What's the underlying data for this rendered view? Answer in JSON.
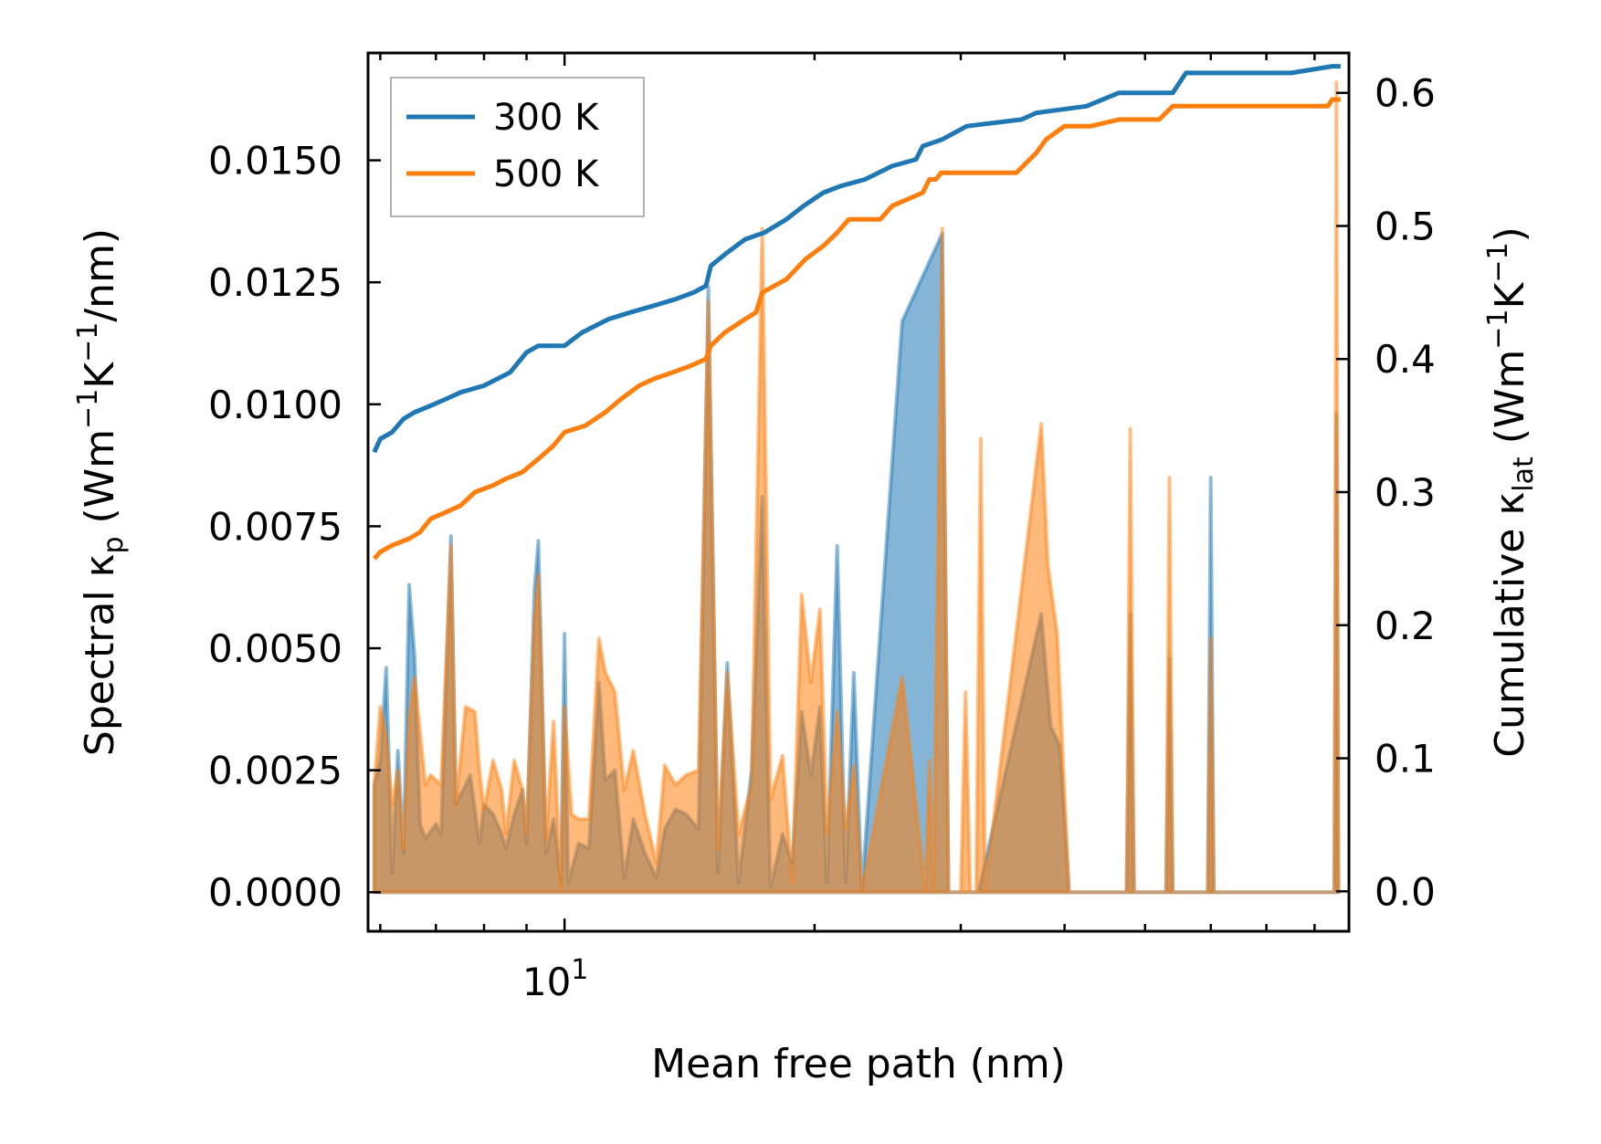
{
  "chart_data": {
    "type": "line",
    "title": "",
    "xlabel": "Mean free path (nm)",
    "xscale": "log",
    "xlim": [
      5.8,
      88
    ],
    "x_tick_label": {
      "base": "10",
      "exp": "1",
      "value": 10
    },
    "y_left": {
      "label_parts": [
        "Spectral κ",
        "p",
        " (Wm",
        "−1",
        "K",
        "−1",
        "/nm)"
      ],
      "ylim": [
        -0.0008,
        0.0172
      ],
      "ticks": [
        0.0,
        0.0025,
        0.005,
        0.0075,
        0.01,
        0.0125,
        0.015
      ],
      "tick_labels": [
        "0.0000",
        "0.0025",
        "0.0050",
        "0.0075",
        "0.0100",
        "0.0125",
        "0.0150"
      ]
    },
    "y_right": {
      "label_parts": [
        "Cumulative κ",
        "lat",
        " (Wm",
        "−1",
        "K",
        "−1",
        ")"
      ],
      "ylim": [
        -0.03,
        0.63
      ],
      "ticks": [
        0.0,
        0.1,
        0.2,
        0.3,
        0.4,
        0.5,
        0.6
      ],
      "tick_labels": [
        "0.0",
        "0.1",
        "0.2",
        "0.3",
        "0.4",
        "0.5",
        "0.6"
      ]
    },
    "legend": {
      "position": "top-left",
      "entries": [
        "300 K",
        "500 K"
      ]
    },
    "series": [
      {
        "name": "300 K",
        "color": "#1f77b4",
        "cumulative": [
          [
            5.9,
            0.33
          ],
          [
            6.0,
            0.34
          ],
          [
            6.2,
            0.345
          ],
          [
            6.4,
            0.355
          ],
          [
            6.6,
            0.36
          ],
          [
            6.9,
            0.365
          ],
          [
            7.2,
            0.37
          ],
          [
            7.5,
            0.375
          ],
          [
            8.0,
            0.38
          ],
          [
            8.6,
            0.39
          ],
          [
            9.0,
            0.405
          ],
          [
            9.3,
            0.41
          ],
          [
            10.0,
            0.41
          ],
          [
            10.5,
            0.42
          ],
          [
            11.3,
            0.43
          ],
          [
            12.0,
            0.435
          ],
          [
            12.8,
            0.44
          ],
          [
            13.6,
            0.445
          ],
          [
            14.3,
            0.45
          ],
          [
            14.8,
            0.455
          ],
          [
            15.0,
            0.47
          ],
          [
            15.7,
            0.48
          ],
          [
            16.5,
            0.49
          ],
          [
            17.4,
            0.495
          ],
          [
            18.5,
            0.505
          ],
          [
            19.4,
            0.515
          ],
          [
            20.5,
            0.525
          ],
          [
            21.5,
            0.53
          ],
          [
            23.0,
            0.535
          ],
          [
            24.8,
            0.545
          ],
          [
            26.5,
            0.55
          ],
          [
            27.0,
            0.56
          ],
          [
            28.5,
            0.565
          ],
          [
            30.5,
            0.575
          ],
          [
            35.5,
            0.58
          ],
          [
            37.0,
            0.585
          ],
          [
            42.5,
            0.59
          ],
          [
            46.5,
            0.6
          ],
          [
            54.0,
            0.6
          ],
          [
            56.0,
            0.615
          ],
          [
            75.0,
            0.615
          ],
          [
            84.0,
            0.62
          ],
          [
            86.0,
            0.62
          ]
        ],
        "spectral": [
          [
            5.9,
            0.0022
          ],
          [
            6.0,
            0.0027
          ],
          [
            6.1,
            0.0046
          ],
          [
            6.2,
            0.0004
          ],
          [
            6.3,
            0.0029
          ],
          [
            6.4,
            0.0008
          ],
          [
            6.5,
            0.0063
          ],
          [
            6.6,
            0.0048
          ],
          [
            6.7,
            0.0014
          ],
          [
            6.8,
            0.0011
          ],
          [
            7.0,
            0.0014
          ],
          [
            7.1,
            0.0012
          ],
          [
            7.3,
            0.0073
          ],
          [
            7.4,
            0.0018
          ],
          [
            7.6,
            0.0022
          ],
          [
            7.7,
            0.0024
          ],
          [
            7.9,
            0.001
          ],
          [
            8.0,
            0.0018
          ],
          [
            8.2,
            0.0016
          ],
          [
            8.4,
            0.0012
          ],
          [
            8.5,
            0.0009
          ],
          [
            8.7,
            0.0016
          ],
          [
            8.9,
            0.0021
          ],
          [
            9.0,
            0.001
          ],
          [
            9.2,
            0.0062
          ],
          [
            9.3,
            0.0072
          ],
          [
            9.5,
            0.0008
          ],
          [
            9.7,
            0.0015
          ],
          [
            9.9,
            0.0002
          ],
          [
            10.0,
            0.0053
          ],
          [
            10.1,
            0.0002
          ],
          [
            10.4,
            0.001
          ],
          [
            10.7,
            0.0009
          ],
          [
            11.0,
            0.0043
          ],
          [
            11.2,
            0.0023
          ],
          [
            11.5,
            0.0025
          ],
          [
            11.8,
            0.0003
          ],
          [
            12.1,
            0.0015
          ],
          [
            12.5,
            0.0008
          ],
          [
            12.9,
            0.0003
          ],
          [
            13.2,
            0.0013
          ],
          [
            13.6,
            0.0017
          ],
          [
            14.0,
            0.0016
          ],
          [
            14.5,
            0.0013
          ],
          [
            14.9,
            0.0124
          ],
          [
            15.3,
            0.0004
          ],
          [
            15.7,
            0.0047
          ],
          [
            16.2,
            0.0002
          ],
          [
            16.8,
            0.0025
          ],
          [
            17.3,
            0.0081
          ],
          [
            17.7,
            0.0001
          ],
          [
            18.3,
            0.0012
          ],
          [
            18.8,
            0.0006
          ],
          [
            19.3,
            0.0037
          ],
          [
            19.8,
            0.0024
          ],
          [
            20.3,
            0.0038
          ],
          [
            20.7,
            0.0002
          ],
          [
            21.3,
            0.0071
          ],
          [
            21.8,
            0.0002
          ],
          [
            22.3,
            0.0045
          ],
          [
            22.8,
            0.0
          ],
          [
            25.5,
            0.0117
          ],
          [
            28.5,
            0.0135
          ],
          [
            29.0,
            0.0
          ],
          [
            31.5,
            0.0
          ],
          [
            37.5,
            0.0057
          ],
          [
            38.5,
            0.0034
          ],
          [
            39.5,
            0.003
          ],
          [
            40.5,
            0.0
          ],
          [
            47.5,
            0.0
          ],
          [
            48.0,
            0.0057
          ],
          [
            48.5,
            0.0
          ],
          [
            53.0,
            0.0
          ],
          [
            53.5,
            0.0048
          ],
          [
            54.0,
            0.0
          ],
          [
            59.5,
            0.0
          ],
          [
            60.0,
            0.0085
          ],
          [
            60.5,
            0.0
          ],
          [
            84.5,
            0.0
          ],
          [
            85.0,
            0.0098
          ],
          [
            85.5,
            0.0
          ]
        ]
      },
      {
        "name": "500 K",
        "color": "#ff7f0e",
        "cumulative": [
          [
            5.9,
            0.25
          ],
          [
            6.0,
            0.255
          ],
          [
            6.2,
            0.26
          ],
          [
            6.5,
            0.265
          ],
          [
            6.7,
            0.27
          ],
          [
            6.9,
            0.28
          ],
          [
            7.2,
            0.285
          ],
          [
            7.5,
            0.29
          ],
          [
            7.8,
            0.3
          ],
          [
            8.2,
            0.305
          ],
          [
            8.5,
            0.31
          ],
          [
            8.9,
            0.315
          ],
          [
            9.3,
            0.325
          ],
          [
            9.7,
            0.335
          ],
          [
            10.0,
            0.345
          ],
          [
            10.6,
            0.35
          ],
          [
            11.2,
            0.36
          ],
          [
            11.7,
            0.37
          ],
          [
            12.3,
            0.38
          ],
          [
            12.8,
            0.385
          ],
          [
            13.5,
            0.39
          ],
          [
            14.2,
            0.395
          ],
          [
            14.8,
            0.4
          ],
          [
            15.0,
            0.41
          ],
          [
            15.6,
            0.42
          ],
          [
            16.5,
            0.43
          ],
          [
            17.0,
            0.435
          ],
          [
            17.3,
            0.45
          ],
          [
            18.5,
            0.46
          ],
          [
            19.5,
            0.475
          ],
          [
            20.5,
            0.485
          ],
          [
            21.3,
            0.495
          ],
          [
            22.0,
            0.505
          ],
          [
            24.0,
            0.505
          ],
          [
            24.8,
            0.515
          ],
          [
            27.0,
            0.525
          ],
          [
            27.5,
            0.535
          ],
          [
            28.0,
            0.535
          ],
          [
            28.4,
            0.54
          ],
          [
            30.5,
            0.54
          ],
          [
            35.0,
            0.54
          ],
          [
            37.0,
            0.555
          ],
          [
            38.0,
            0.565
          ],
          [
            40.0,
            0.575
          ],
          [
            43.0,
            0.575
          ],
          [
            46.5,
            0.58
          ],
          [
            52.0,
            0.58
          ],
          [
            54.0,
            0.59
          ],
          [
            83.0,
            0.59
          ],
          [
            84.0,
            0.595
          ],
          [
            86.0,
            0.595
          ]
        ],
        "spectral": [
          [
            5.9,
            0.0022
          ],
          [
            6.0,
            0.0038
          ],
          [
            6.1,
            0.0032
          ],
          [
            6.2,
            0.0018
          ],
          [
            6.3,
            0.0025
          ],
          [
            6.4,
            0.0009
          ],
          [
            6.5,
            0.0036
          ],
          [
            6.6,
            0.0044
          ],
          [
            6.8,
            0.0022
          ],
          [
            6.9,
            0.0024
          ],
          [
            7.1,
            0.0022
          ],
          [
            7.3,
            0.0071
          ],
          [
            7.4,
            0.0018
          ],
          [
            7.6,
            0.0038
          ],
          [
            7.8,
            0.0037
          ],
          [
            7.9,
            0.0025
          ],
          [
            8.0,
            0.0017
          ],
          [
            8.2,
            0.0027
          ],
          [
            8.4,
            0.0021
          ],
          [
            8.5,
            0.0012
          ],
          [
            8.7,
            0.0027
          ],
          [
            8.9,
            0.0021
          ],
          [
            9.0,
            0.0012
          ],
          [
            9.2,
            0.0056
          ],
          [
            9.3,
            0.0065
          ],
          [
            9.5,
            0.0011
          ],
          [
            9.7,
            0.0035
          ],
          [
            9.9,
            0.0001
          ],
          [
            10.0,
            0.0038
          ],
          [
            10.2,
            0.0016
          ],
          [
            10.4,
            0.0015
          ],
          [
            10.7,
            0.0015
          ],
          [
            11.0,
            0.0052
          ],
          [
            11.2,
            0.0045
          ],
          [
            11.5,
            0.0041
          ],
          [
            11.8,
            0.0021
          ],
          [
            12.1,
            0.0029
          ],
          [
            12.5,
            0.0016
          ],
          [
            12.9,
            0.0006
          ],
          [
            13.2,
            0.0026
          ],
          [
            13.6,
            0.0022
          ],
          [
            14.0,
            0.0024
          ],
          [
            14.5,
            0.0025
          ],
          [
            14.9,
            0.0121
          ],
          [
            15.3,
            0.0009
          ],
          [
            15.7,
            0.0045
          ],
          [
            16.2,
            0.0012
          ],
          [
            16.8,
            0.0022
          ],
          [
            17.3,
            0.0136
          ],
          [
            17.7,
            0.0019
          ],
          [
            18.3,
            0.0028
          ],
          [
            18.8,
            0.0002
          ],
          [
            19.3,
            0.0061
          ],
          [
            19.8,
            0.0043
          ],
          [
            20.3,
            0.0058
          ],
          [
            20.7,
            0.0012
          ],
          [
            21.3,
            0.0037
          ],
          [
            21.8,
            0.0013
          ],
          [
            22.3,
            0.0026
          ],
          [
            22.8,
            0.0
          ],
          [
            25.5,
            0.0044
          ],
          [
            27.2,
            0.0
          ],
          [
            27.5,
            0.0027
          ],
          [
            27.8,
            0.0
          ],
          [
            28.5,
            0.0136
          ],
          [
            29.0,
            0.0
          ],
          [
            30.0,
            0.0
          ],
          [
            30.4,
            0.0041
          ],
          [
            30.8,
            0.0
          ],
          [
            31.3,
            0.0
          ],
          [
            31.7,
            0.0093
          ],
          [
            32.1,
            0.0
          ],
          [
            37.5,
            0.0096
          ],
          [
            38.2,
            0.0067
          ],
          [
            39.2,
            0.0053
          ],
          [
            40.5,
            0.0
          ],
          [
            47.5,
            0.0
          ],
          [
            48.0,
            0.0095
          ],
          [
            48.5,
            0.0
          ],
          [
            53.0,
            0.0
          ],
          [
            53.5,
            0.0085
          ],
          [
            54.0,
            0.0
          ],
          [
            59.5,
            0.0
          ],
          [
            60.0,
            0.0052
          ],
          [
            60.5,
            0.0
          ],
          [
            84.5,
            0.0
          ],
          [
            85.0,
            0.0166
          ],
          [
            85.5,
            0.0
          ]
        ]
      }
    ]
  }
}
